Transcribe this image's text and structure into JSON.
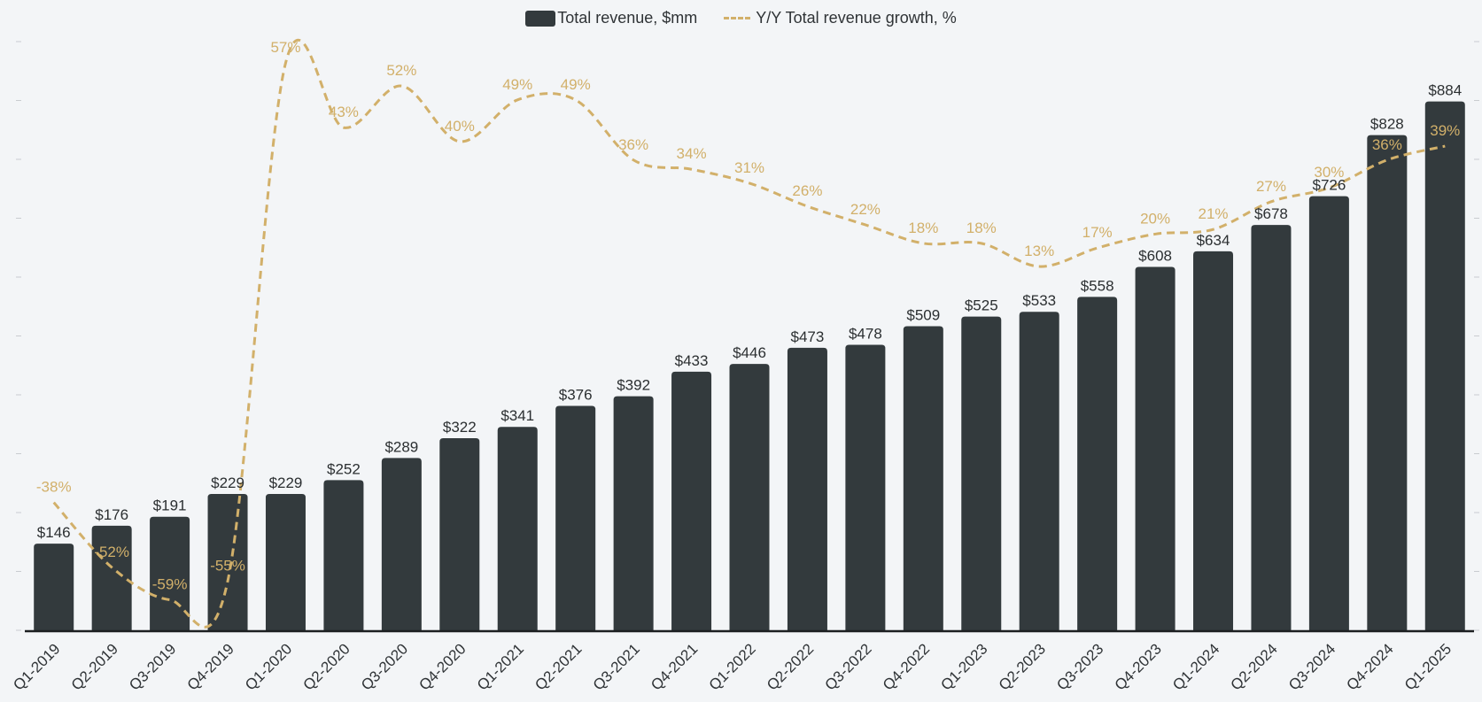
{
  "chart_data": {
    "type": "bar",
    "title": "",
    "xlabel": "",
    "ylabel": "",
    "categories": [
      "Q1-2019",
      "Q2-2019",
      "Q3-2019",
      "Q4-2019",
      "Q1-2020",
      "Q2-2020",
      "Q3-2020",
      "Q4-2020",
      "Q1-2021",
      "Q2-2021",
      "Q3-2021",
      "Q4-2021",
      "Q1-2022",
      "Q2-2022",
      "Q3-2022",
      "Q4-2022",
      "Q1-2023",
      "Q2-2023",
      "Q3-2023",
      "Q4-2023",
      "Q1-2024",
      "Q2-2024",
      "Q3-2024",
      "Q4-2024",
      "Q1-2025"
    ],
    "series": [
      {
        "name": "Total revenue, $mm",
        "type": "bar",
        "color": "#333a3d",
        "values": [
          146,
          176,
          191,
          229,
          229,
          252,
          289,
          322,
          341,
          376,
          392,
          433,
          446,
          473,
          478,
          509,
          525,
          533,
          558,
          608,
          634,
          678,
          726,
          828,
          884
        ],
        "labels": [
          "$146",
          "$176",
          "$191",
          "$229",
          "$229",
          "$252",
          "$289",
          "$322",
          "$341",
          "$376",
          "$392",
          "$433",
          "$446",
          "$473",
          "$478",
          "$509",
          "$525",
          "$533",
          "$558",
          "$608",
          "$634",
          "$678",
          "$726",
          "$828",
          "$884"
        ]
      },
      {
        "name": "Y/Y Total revenue growth, %",
        "type": "line",
        "style": "dashed",
        "color": "#d2b06a",
        "values": [
          -38,
          -52,
          -59,
          -55,
          57,
          43,
          52,
          40,
          49,
          49,
          36,
          34,
          31,
          26,
          22,
          18,
          18,
          13,
          17,
          20,
          21,
          27,
          30,
          36,
          39
        ],
        "labels": [
          "-38%",
          "-52%",
          "-59%",
          "-55%",
          "57%",
          "43%",
          "52%",
          "40%",
          "49%",
          "49%",
          "36%",
          "34%",
          "31%",
          "26%",
          "22%",
          "18%",
          "18%",
          "13%",
          "17%",
          "20%",
          "21%",
          "27%",
          "30%",
          "36%",
          "39%"
        ]
      }
    ],
    "ylim": [
      0,
      950
    ],
    "y2lim": [
      -70,
      70
    ],
    "grid": false,
    "legend": "top-center"
  }
}
